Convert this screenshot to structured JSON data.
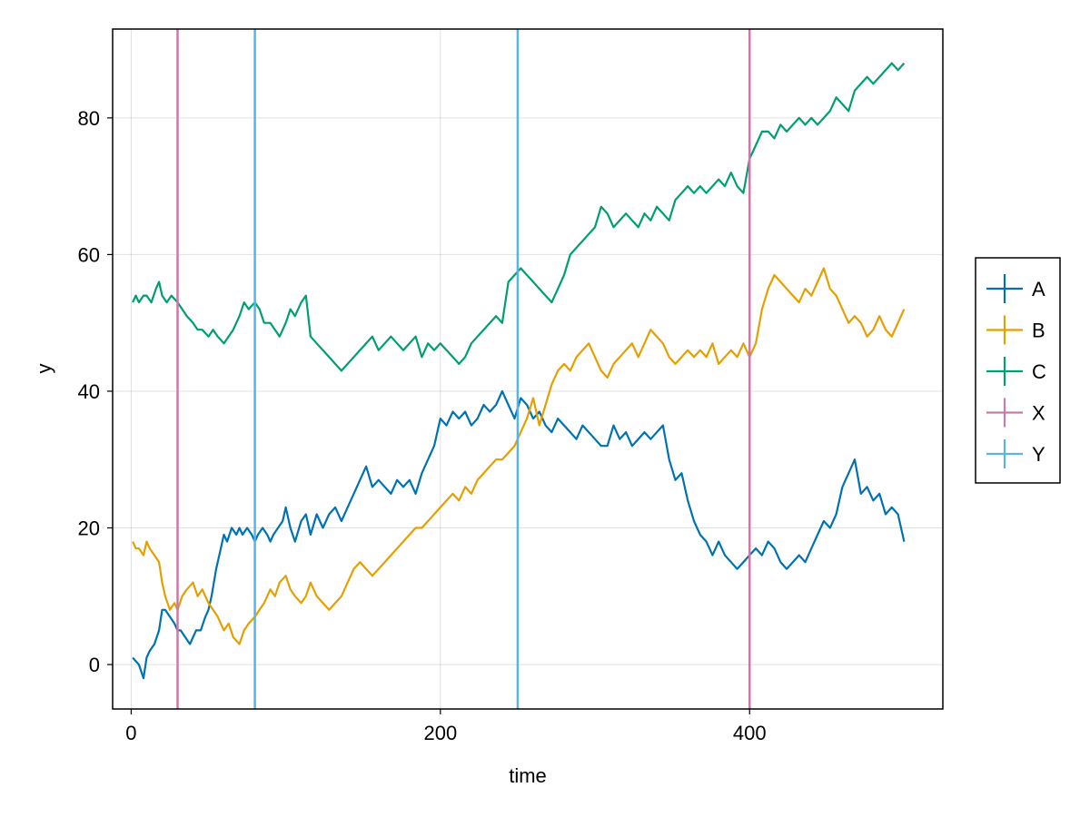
{
  "chart_data": {
    "type": "line",
    "title": "",
    "xlabel": "time",
    "ylabel": "y",
    "xlim": [
      -12,
      525
    ],
    "ylim": [
      -6.5,
      93
    ],
    "x_ticks": [
      0,
      200,
      400
    ],
    "y_ticks": [
      0,
      20,
      40,
      60,
      80
    ],
    "grid": true,
    "legend_position": "right",
    "series": [
      {
        "name": "A",
        "color": "#0072b2",
        "x": [
          1,
          5,
          8,
          10,
          12,
          15,
          18,
          20,
          22,
          25,
          28,
          30,
          32,
          35,
          38,
          40,
          42,
          45,
          48,
          50,
          52,
          55,
          58,
          60,
          62,
          65,
          68,
          70,
          72,
          75,
          78,
          80,
          82,
          85,
          88,
          90,
          92,
          95,
          98,
          100,
          103,
          106,
          110,
          113,
          116,
          120,
          124,
          128,
          132,
          136,
          140,
          144,
          148,
          152,
          156,
          160,
          164,
          168,
          172,
          176,
          180,
          184,
          188,
          192,
          196,
          200,
          204,
          208,
          212,
          216,
          220,
          224,
          228,
          232,
          236,
          240,
          244,
          248,
          252,
          256,
          260,
          264,
          268,
          272,
          276,
          280,
          284,
          288,
          292,
          296,
          300,
          304,
          308,
          312,
          316,
          320,
          324,
          328,
          332,
          336,
          340,
          344,
          348,
          352,
          356,
          360,
          364,
          368,
          372,
          376,
          380,
          384,
          388,
          392,
          396,
          400,
          404,
          408,
          412,
          416,
          420,
          424,
          428,
          432,
          436,
          440,
          444,
          448,
          452,
          456,
          460,
          464,
          468,
          472,
          476,
          480,
          484,
          488,
          492,
          496,
          500
        ],
        "y": [
          1,
          0,
          -2,
          1,
          2,
          3,
          5,
          8,
          8,
          7,
          6,
          5,
          5,
          4,
          3,
          4,
          5,
          5,
          7,
          8,
          10,
          14,
          17,
          19,
          18,
          20,
          19,
          20,
          19,
          20,
          19,
          18,
          19,
          20,
          19,
          18,
          19,
          20,
          21,
          23,
          20,
          18,
          21,
          22,
          19,
          22,
          20,
          22,
          23,
          21,
          23,
          25,
          27,
          29,
          26,
          27,
          26,
          25,
          27,
          26,
          27,
          25,
          28,
          30,
          32,
          36,
          35,
          37,
          36,
          37,
          35,
          36,
          38,
          37,
          38,
          40,
          38,
          36,
          39,
          38,
          36,
          37,
          35,
          34,
          36,
          35,
          34,
          33,
          35,
          34,
          33,
          32,
          32,
          35,
          33,
          34,
          32,
          33,
          34,
          33,
          34,
          35,
          30,
          27,
          28,
          24,
          21,
          19,
          18,
          16,
          18,
          16,
          15,
          14,
          15,
          16,
          17,
          16,
          18,
          17,
          15,
          14,
          15,
          16,
          15,
          17,
          19,
          21,
          20,
          22,
          26,
          28,
          30,
          25,
          26,
          24,
          25,
          22,
          23,
          22,
          18
        ]
      },
      {
        "name": "B",
        "color": "#e69f00",
        "x": [
          1,
          3,
          5,
          8,
          10,
          12,
          15,
          18,
          20,
          22,
          25,
          28,
          30,
          33,
          36,
          40,
          43,
          46,
          50,
          53,
          56,
          60,
          63,
          66,
          70,
          73,
          76,
          80,
          83,
          86,
          90,
          93,
          96,
          100,
          103,
          106,
          110,
          113,
          116,
          120,
          124,
          128,
          132,
          136,
          140,
          144,
          148,
          152,
          156,
          160,
          164,
          168,
          172,
          176,
          180,
          184,
          188,
          192,
          196,
          200,
          204,
          208,
          212,
          216,
          220,
          224,
          228,
          232,
          236,
          240,
          244,
          248,
          252,
          256,
          260,
          264,
          268,
          272,
          276,
          280,
          284,
          288,
          292,
          296,
          300,
          304,
          308,
          312,
          316,
          320,
          324,
          328,
          332,
          336,
          340,
          344,
          348,
          352,
          356,
          360,
          364,
          368,
          372,
          376,
          380,
          384,
          388,
          392,
          396,
          400,
          404,
          408,
          412,
          416,
          420,
          424,
          428,
          432,
          436,
          440,
          444,
          448,
          452,
          456,
          460,
          464,
          468,
          472,
          476,
          480,
          484,
          488,
          492,
          496,
          500
        ],
        "y": [
          18,
          17,
          17,
          16,
          18,
          17,
          16,
          15,
          12,
          10,
          8,
          9,
          8,
          10,
          11,
          12,
          10,
          11,
          9,
          8,
          7,
          5,
          6,
          4,
          3,
          5,
          6,
          7,
          8,
          9,
          11,
          10,
          12,
          13,
          11,
          10,
          9,
          10,
          12,
          10,
          9,
          8,
          9,
          10,
          12,
          14,
          15,
          14,
          13,
          14,
          15,
          16,
          17,
          18,
          19,
          20,
          20,
          21,
          22,
          23,
          24,
          25,
          24,
          26,
          25,
          27,
          28,
          29,
          30,
          30,
          31,
          32,
          34,
          36,
          39,
          35,
          38,
          41,
          43,
          44,
          43,
          45,
          46,
          47,
          45,
          43,
          42,
          44,
          45,
          46,
          47,
          45,
          47,
          49,
          48,
          47,
          45,
          44,
          45,
          46,
          45,
          46,
          45,
          47,
          44,
          45,
          46,
          45,
          47,
          45,
          47,
          52,
          55,
          57,
          56,
          55,
          54,
          53,
          55,
          54,
          56,
          58,
          55,
          54,
          52,
          50,
          51,
          50,
          48,
          49,
          51,
          49,
          48,
          50,
          52
        ]
      },
      {
        "name": "C",
        "color": "#009e73",
        "x": [
          1,
          3,
          5,
          8,
          10,
          13,
          16,
          18,
          20,
          23,
          26,
          30,
          33,
          36,
          40,
          43,
          46,
          50,
          53,
          56,
          60,
          63,
          66,
          70,
          73,
          76,
          80,
          83,
          86,
          90,
          93,
          96,
          100,
          103,
          106,
          110,
          113,
          116,
          120,
          124,
          128,
          132,
          136,
          140,
          144,
          148,
          152,
          156,
          160,
          164,
          168,
          172,
          176,
          180,
          184,
          188,
          192,
          196,
          200,
          204,
          208,
          212,
          216,
          220,
          224,
          228,
          232,
          236,
          240,
          244,
          248,
          252,
          256,
          260,
          264,
          268,
          272,
          276,
          280,
          284,
          288,
          292,
          296,
          300,
          304,
          308,
          312,
          316,
          320,
          324,
          328,
          332,
          336,
          340,
          344,
          348,
          352,
          356,
          360,
          364,
          368,
          372,
          376,
          380,
          384,
          388,
          392,
          396,
          400,
          404,
          408,
          412,
          416,
          420,
          424,
          428,
          432,
          436,
          440,
          444,
          448,
          452,
          456,
          460,
          464,
          468,
          472,
          476,
          480,
          484,
          488,
          492,
          496,
          500
        ],
        "y": [
          53,
          54,
          53,
          54,
          54,
          53,
          55,
          56,
          54,
          53,
          54,
          53,
          52,
          51,
          50,
          49,
          49,
          48,
          49,
          48,
          47,
          48,
          49,
          51,
          53,
          52,
          53,
          52,
          50,
          50,
          49,
          48,
          50,
          52,
          51,
          53,
          54,
          48,
          47,
          46,
          45,
          44,
          43,
          44,
          45,
          46,
          47,
          48,
          46,
          47,
          48,
          47,
          46,
          47,
          48,
          45,
          47,
          46,
          47,
          46,
          45,
          44,
          45,
          47,
          48,
          49,
          50,
          51,
          50,
          56,
          57,
          58,
          57,
          56,
          55,
          54,
          53,
          55,
          57,
          60,
          61,
          62,
          63,
          64,
          67,
          66,
          64,
          65,
          66,
          65,
          64,
          66,
          65,
          67,
          66,
          65,
          68,
          69,
          70,
          69,
          70,
          69,
          70,
          71,
          70,
          72,
          70,
          69,
          74,
          76,
          78,
          78,
          77,
          79,
          78,
          79,
          80,
          79,
          80,
          79,
          80,
          81,
          83,
          82,
          81,
          84,
          85,
          86,
          85,
          86,
          87,
          88,
          87,
          88
        ]
      },
      {
        "name": "X",
        "color": "#cc79a7",
        "type": "vline",
        "x": [
          30,
          400
        ]
      },
      {
        "name": "Y",
        "color": "#56b4e9",
        "type": "vline",
        "x": [
          80,
          250
        ]
      }
    ]
  }
}
